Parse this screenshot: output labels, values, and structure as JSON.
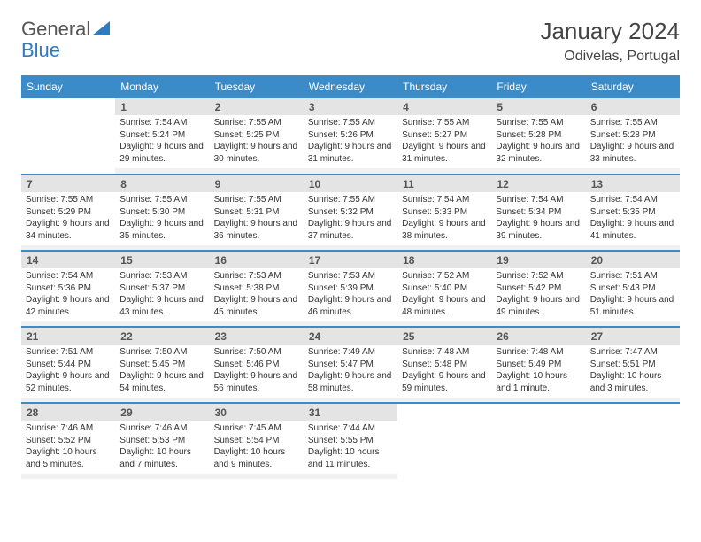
{
  "logo": {
    "text1": "General",
    "text2": "Blue"
  },
  "title": "January 2024",
  "location": "Odivelas, Portugal",
  "colors": {
    "header_bg": "#3b8bc9",
    "header_text": "#ffffff",
    "accent": "#2f7bbf",
    "daynum_bg": "#e4e4e4",
    "cell_border": "#3b8bc9",
    "text": "#333333",
    "body_bg": "#ffffff"
  },
  "weekdays": [
    "Sunday",
    "Monday",
    "Tuesday",
    "Wednesday",
    "Thursday",
    "Friday",
    "Saturday"
  ],
  "start_offset": 1,
  "days": [
    {
      "n": "1",
      "sunrise": "7:54 AM",
      "sunset": "5:24 PM",
      "daylight": "9 hours and 29 minutes."
    },
    {
      "n": "2",
      "sunrise": "7:55 AM",
      "sunset": "5:25 PM",
      "daylight": "9 hours and 30 minutes."
    },
    {
      "n": "3",
      "sunrise": "7:55 AM",
      "sunset": "5:26 PM",
      "daylight": "9 hours and 31 minutes."
    },
    {
      "n": "4",
      "sunrise": "7:55 AM",
      "sunset": "5:27 PM",
      "daylight": "9 hours and 31 minutes."
    },
    {
      "n": "5",
      "sunrise": "7:55 AM",
      "sunset": "5:28 PM",
      "daylight": "9 hours and 32 minutes."
    },
    {
      "n": "6",
      "sunrise": "7:55 AM",
      "sunset": "5:28 PM",
      "daylight": "9 hours and 33 minutes."
    },
    {
      "n": "7",
      "sunrise": "7:55 AM",
      "sunset": "5:29 PM",
      "daylight": "9 hours and 34 minutes."
    },
    {
      "n": "8",
      "sunrise": "7:55 AM",
      "sunset": "5:30 PM",
      "daylight": "9 hours and 35 minutes."
    },
    {
      "n": "9",
      "sunrise": "7:55 AM",
      "sunset": "5:31 PM",
      "daylight": "9 hours and 36 minutes."
    },
    {
      "n": "10",
      "sunrise": "7:55 AM",
      "sunset": "5:32 PM",
      "daylight": "9 hours and 37 minutes."
    },
    {
      "n": "11",
      "sunrise": "7:54 AM",
      "sunset": "5:33 PM",
      "daylight": "9 hours and 38 minutes."
    },
    {
      "n": "12",
      "sunrise": "7:54 AM",
      "sunset": "5:34 PM",
      "daylight": "9 hours and 39 minutes."
    },
    {
      "n": "13",
      "sunrise": "7:54 AM",
      "sunset": "5:35 PM",
      "daylight": "9 hours and 41 minutes."
    },
    {
      "n": "14",
      "sunrise": "7:54 AM",
      "sunset": "5:36 PM",
      "daylight": "9 hours and 42 minutes."
    },
    {
      "n": "15",
      "sunrise": "7:53 AM",
      "sunset": "5:37 PM",
      "daylight": "9 hours and 43 minutes."
    },
    {
      "n": "16",
      "sunrise": "7:53 AM",
      "sunset": "5:38 PM",
      "daylight": "9 hours and 45 minutes."
    },
    {
      "n": "17",
      "sunrise": "7:53 AM",
      "sunset": "5:39 PM",
      "daylight": "9 hours and 46 minutes."
    },
    {
      "n": "18",
      "sunrise": "7:52 AM",
      "sunset": "5:40 PM",
      "daylight": "9 hours and 48 minutes."
    },
    {
      "n": "19",
      "sunrise": "7:52 AM",
      "sunset": "5:42 PM",
      "daylight": "9 hours and 49 minutes."
    },
    {
      "n": "20",
      "sunrise": "7:51 AM",
      "sunset": "5:43 PM",
      "daylight": "9 hours and 51 minutes."
    },
    {
      "n": "21",
      "sunrise": "7:51 AM",
      "sunset": "5:44 PM",
      "daylight": "9 hours and 52 minutes."
    },
    {
      "n": "22",
      "sunrise": "7:50 AM",
      "sunset": "5:45 PM",
      "daylight": "9 hours and 54 minutes."
    },
    {
      "n": "23",
      "sunrise": "7:50 AM",
      "sunset": "5:46 PM",
      "daylight": "9 hours and 56 minutes."
    },
    {
      "n": "24",
      "sunrise": "7:49 AM",
      "sunset": "5:47 PM",
      "daylight": "9 hours and 58 minutes."
    },
    {
      "n": "25",
      "sunrise": "7:48 AM",
      "sunset": "5:48 PM",
      "daylight": "9 hours and 59 minutes."
    },
    {
      "n": "26",
      "sunrise": "7:48 AM",
      "sunset": "5:49 PM",
      "daylight": "10 hours and 1 minute."
    },
    {
      "n": "27",
      "sunrise": "7:47 AM",
      "sunset": "5:51 PM",
      "daylight": "10 hours and 3 minutes."
    },
    {
      "n": "28",
      "sunrise": "7:46 AM",
      "sunset": "5:52 PM",
      "daylight": "10 hours and 5 minutes."
    },
    {
      "n": "29",
      "sunrise": "7:46 AM",
      "sunset": "5:53 PM",
      "daylight": "10 hours and 7 minutes."
    },
    {
      "n": "30",
      "sunrise": "7:45 AM",
      "sunset": "5:54 PM",
      "daylight": "10 hours and 9 minutes."
    },
    {
      "n": "31",
      "sunrise": "7:44 AM",
      "sunset": "5:55 PM",
      "daylight": "10 hours and 11 minutes."
    }
  ],
  "labels": {
    "sunrise": "Sunrise:",
    "sunset": "Sunset:",
    "daylight": "Daylight:"
  }
}
